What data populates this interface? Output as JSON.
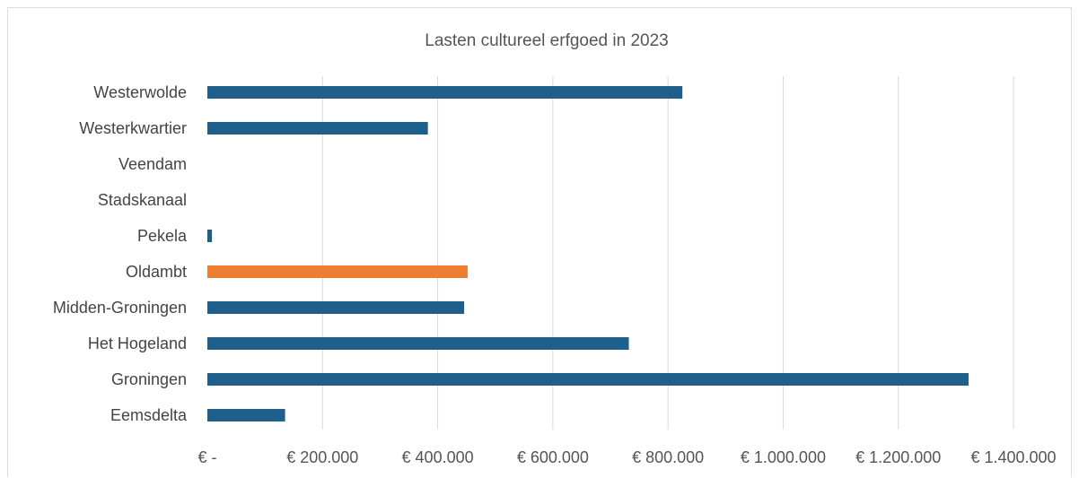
{
  "chart_data": {
    "type": "bar",
    "orientation": "horizontal",
    "title": "Lasten cultureel erfgoed in 2023",
    "xlabel": "",
    "ylabel": "",
    "xlim": [
      0,
      1400000
    ],
    "categories": [
      "Westerwolde",
      "Westerkwartier",
      "Veendam",
      "Stadskanaal",
      "Pekela",
      "Oldambt",
      "Midden-Groningen",
      "Het Hogeland",
      "Groningen",
      "Eemsdelta"
    ],
    "values": [
      825000,
      383000,
      0,
      0,
      8000,
      452000,
      446000,
      732000,
      1322000,
      135000
    ],
    "bar_colors": [
      "#1f5f8b",
      "#1f5f8b",
      "#1f5f8b",
      "#1f5f8b",
      "#1f5f8b",
      "#ed7d31",
      "#1f5f8b",
      "#1f5f8b",
      "#1f5f8b",
      "#1f5f8b"
    ],
    "highlight_category": "Oldambt",
    "ticks": [
      0,
      200000,
      400000,
      600000,
      800000,
      1000000,
      1200000,
      1400000
    ],
    "tick_labels": [
      "€ -",
      "€ 200.000",
      "€ 400.000",
      "€ 600.000",
      "€ 800.000",
      "€ 1.000.000",
      "€ 1.200.000",
      "€ 1.400.000"
    ],
    "grid": true,
    "legend": "none"
  },
  "colors": {
    "series": "#1f5f8b",
    "highlight": "#ed7d31",
    "grid": "#d9d9d9",
    "text": "#444444"
  }
}
